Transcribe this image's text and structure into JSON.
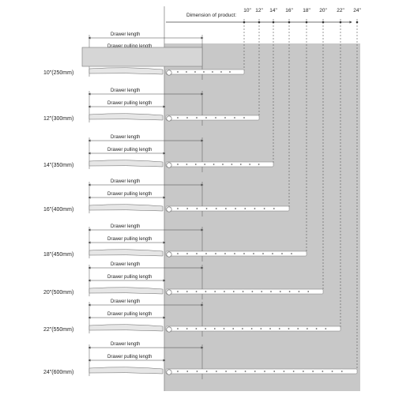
{
  "header": {
    "dimension_label": "Dimension of product:",
    "size_labels": [
      "10\"",
      "12\"",
      "14\"",
      "16\"",
      "18\"",
      "20\"",
      "22\"",
      "24\""
    ]
  },
  "rows": [
    {
      "size": "10\"(250mm)"
    },
    {
      "size": "12\"(300mm)"
    },
    {
      "size": "14\"(350mm)"
    },
    {
      "size": "16\"(400mm)"
    },
    {
      "size": "18\"(450mm)"
    },
    {
      "size": "20\"(500mm)"
    },
    {
      "size": "22\"(550mm)"
    },
    {
      "size": "24\"(600mm)"
    }
  ],
  "labels": {
    "drawer_length": "Drawer length",
    "drawer_pulling_length": "Drawer pulling length"
  },
  "colors": {
    "panel": "#c8c8c8",
    "rail": "#ffffff",
    "line": "#555555",
    "guide": "#666666"
  }
}
